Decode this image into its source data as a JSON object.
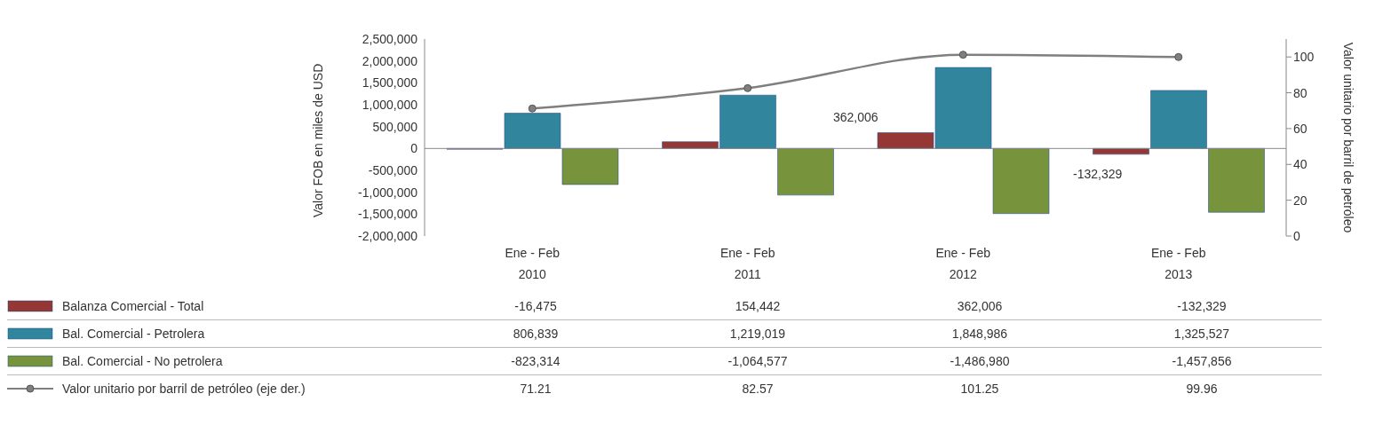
{
  "chart_data": {
    "type": "bar",
    "ylabel": "Valor FOB en miles de USD",
    "y2label": "Valor unitario por barril de petróleo",
    "categories": [
      "Ene - Feb 2010",
      "Ene - Feb 2011",
      "Ene - Feb 2012",
      "Ene - Feb 2013"
    ],
    "series": [
      {
        "name": "Balanza Comercial - Total",
        "color": "#953735",
        "values": [
          -16475,
          154442,
          362006,
          -132329
        ],
        "value_labels": [
          "-16,475",
          "154,442",
          "362,006",
          "-132,329"
        ]
      },
      {
        "name": "Bal. Comercial - Petrolera",
        "color": "#31859c",
        "values": [
          806839,
          1219019,
          1848986,
          1325527
        ],
        "value_labels": [
          "806,839",
          "1,219,019",
          "1,848,986",
          "1,325,527"
        ]
      },
      {
        "name": "Bal. Comercial - No petrolera",
        "color": "#77933c",
        "values": [
          -823314,
          -1064577,
          -1486980,
          -1457856
        ],
        "value_labels": [
          "-823,314",
          "-1,064,577",
          "-1,486,980",
          "-1,457,856"
        ]
      },
      {
        "name": "Valor unitario por barril de petróleo (eje der.)",
        "type": "line",
        "axis": "y2",
        "color": "#7f7f7f",
        "marker": "circle",
        "line_style": "solid",
        "values": [
          71.21,
          82.57,
          101.25,
          99.96
        ],
        "value_labels": [
          "71.21",
          "82.57",
          "101.25",
          "99.96"
        ]
      }
    ],
    "annotations": [
      "362,006",
      "-132,329"
    ],
    "ylim": [
      -2000000,
      2500000
    ],
    "yticks": [
      {
        "value": -2000000,
        "label": "-2,000,000"
      },
      {
        "value": -1500000,
        "label": "-1,500,000"
      },
      {
        "value": -1000000,
        "label": "-1,000,000"
      },
      {
        "value": -500000,
        "label": "-500,000"
      },
      0,
      {
        "value": 500000,
        "label": "500,000"
      },
      {
        "value": 1000000,
        "label": "1,000,000"
      },
      {
        "value": 1500000,
        "label": "1,500,000"
      },
      {
        "value": 2000000,
        "label": "2,000,000"
      },
      {
        "value": 2500000,
        "label": "2,500,000"
      }
    ],
    "y2lim": [
      0,
      110
    ],
    "y2ticks": [
      0,
      20,
      40,
      60,
      80,
      100
    ],
    "legend": "bottom"
  }
}
